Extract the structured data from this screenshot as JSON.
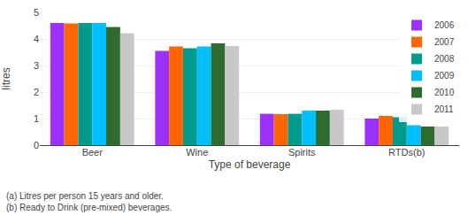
{
  "chart_data": {
    "type": "bar",
    "categories": [
      "Beer",
      "Wine",
      "Spirits",
      "RTDs(b)"
    ],
    "series": [
      {
        "name": "2006",
        "color": "#9B30FF",
        "values": [
          4.6,
          3.55,
          1.18,
          1.0
        ]
      },
      {
        "name": "2007",
        "color": "#FF6600",
        "values": [
          4.58,
          3.72,
          1.17,
          1.1
        ]
      },
      {
        "name": "2008",
        "color": "#009B8D",
        "values": [
          4.6,
          3.65,
          1.18,
          1.05
        ]
      },
      {
        "name": "2009",
        "color": "#00BFFF",
        "values": [
          4.6,
          3.72,
          1.3,
          0.75
        ]
      },
      {
        "name": "2010",
        "color": "#2E6B2E",
        "values": [
          4.45,
          3.83,
          1.3,
          0.7
        ]
      },
      {
        "name": "2011",
        "color": "#C8C8C8",
        "values": [
          4.22,
          3.73,
          1.33,
          0.7
        ]
      }
    ],
    "ylabel": "litres",
    "xlabel": "Type of beverage",
    "ylim": [
      0,
      5
    ],
    "yticks": [
      0,
      1,
      2,
      3,
      4,
      5
    ],
    "grid": true,
    "legend": "upper right",
    "annotations": [
      "(a) Litres per person 15 years and older.",
      "(b) Ready to Drink (pre-mixed) beverages."
    ]
  }
}
